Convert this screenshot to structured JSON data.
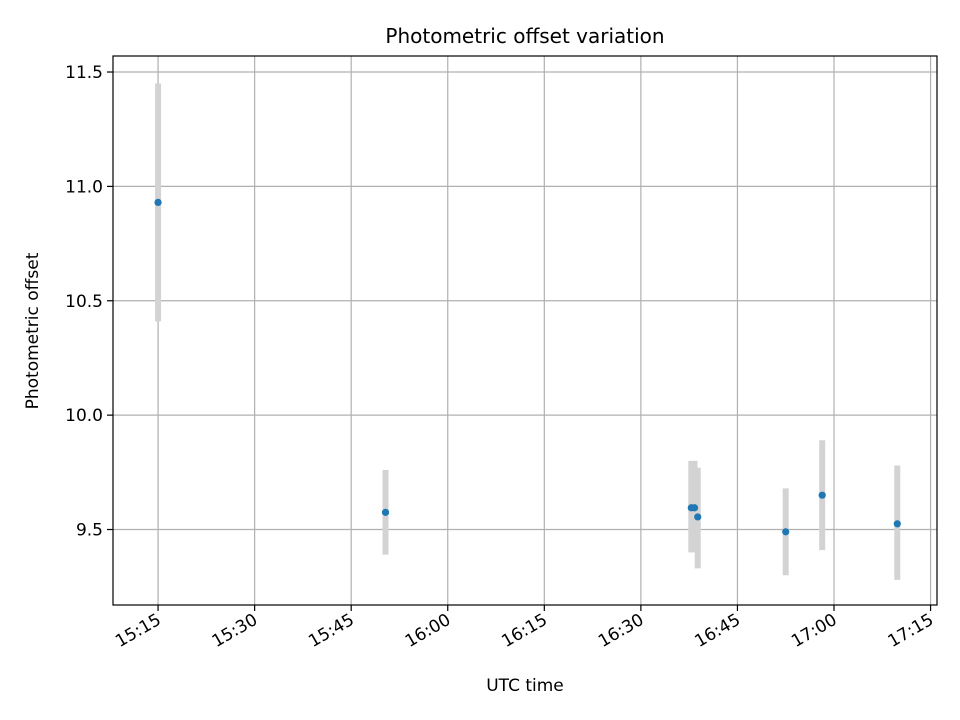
{
  "chart_data": {
    "type": "scatter",
    "title": "Photometric offset variation",
    "xlabel": "UTC time",
    "ylabel": "Photometric offset",
    "x_is_time": true,
    "xlim": [
      "15:08",
      "17:16"
    ],
    "ylim": [
      9.17,
      11.57
    ],
    "x_ticks": [
      "15:15",
      "15:30",
      "15:45",
      "16:00",
      "16:15",
      "16:30",
      "16:45",
      "17:00",
      "17:15"
    ],
    "y_ticks": [
      "9.5",
      "10.0",
      "10.5",
      "11.0",
      "11.5"
    ],
    "grid": true,
    "legend": "none",
    "point_color": "#1f77b4",
    "errorbar_color": "#d3d3d3",
    "series": [
      {
        "points": [
          {
            "x": "15:15:00",
            "y": 10.93,
            "ylow": 10.41,
            "yhigh": 11.45
          },
          {
            "x": "15:50:20",
            "y": 9.575,
            "ylow": 9.39,
            "yhigh": 9.76
          },
          {
            "x": "16:37:50",
            "y": 9.595,
            "ylow": 9.4,
            "yhigh": 9.8
          },
          {
            "x": "16:38:20",
            "y": 9.595,
            "ylow": 9.4,
            "yhigh": 9.8
          },
          {
            "x": "16:38:50",
            "y": 9.555,
            "ylow": 9.33,
            "yhigh": 9.77
          },
          {
            "x": "16:52:30",
            "y": 9.49,
            "ylow": 9.3,
            "yhigh": 9.68
          },
          {
            "x": "16:58:10",
            "y": 9.65,
            "ylow": 9.41,
            "yhigh": 9.89
          },
          {
            "x": "17:09:50",
            "y": 9.525,
            "ylow": 9.28,
            "yhigh": 9.78
          }
        ]
      }
    ]
  }
}
